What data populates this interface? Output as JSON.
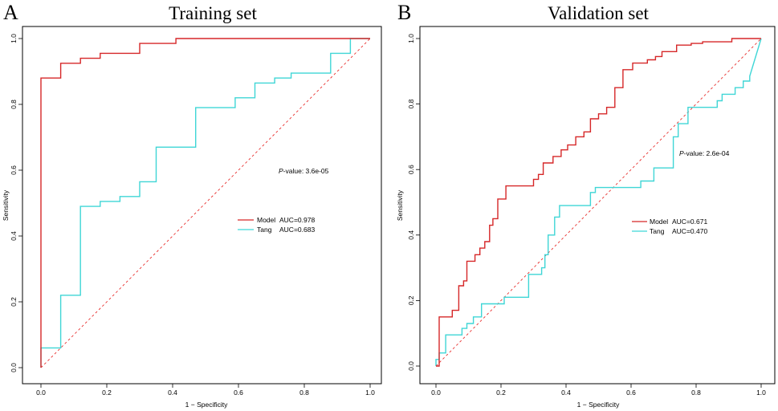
{
  "chart_data": [
    {
      "type": "line",
      "panel_label": "A",
      "title": "Training set",
      "xlabel": "1 − Specificity",
      "ylabel": "Sensitivity",
      "xlim": [
        0,
        1
      ],
      "ylim": [
        0,
        1
      ],
      "x_ticks": [
        "0.0",
        "0.2",
        "0.4",
        "0.6",
        "0.8",
        "1.0"
      ],
      "y_ticks": [
        "0.0",
        "0.2",
        "0.4",
        "0.6",
        "0.8",
        "1.0"
      ],
      "annotation": {
        "italic": "P",
        "text": "-value: 3.6e-05"
      },
      "diagonal": {
        "x": [
          0,
          1
        ],
        "y": [
          0,
          1
        ],
        "color": "#e8312f"
      },
      "legend": {
        "position": "center-right",
        "entries": [
          {
            "name": "Model",
            "auc": "AUC=0.978",
            "color": "#d62728"
          },
          {
            "name": "Tang",
            "auc": "AUC=0.683",
            "color": "#3fd6d6"
          }
        ]
      },
      "series": [
        {
          "name": "Model",
          "color": "#d62728",
          "x": [
            0,
            0,
            0.06,
            0.06,
            0.06,
            0.12,
            0.12,
            0.18,
            0.18,
            0.3,
            0.3,
            0.41,
            0.41,
            1.0
          ],
          "y": [
            0,
            0.88,
            0.88,
            0.92,
            0.925,
            0.925,
            0.94,
            0.94,
            0.955,
            0.955,
            0.985,
            0.985,
            1.0,
            1.0
          ]
        },
        {
          "name": "Tang",
          "color": "#3fd6d6",
          "x": [
            0,
            0,
            0.06,
            0.06,
            0.12,
            0.12,
            0.18,
            0.18,
            0.24,
            0.24,
            0.3,
            0.3,
            0.35,
            0.35,
            0.47,
            0.47,
            0.59,
            0.59,
            0.65,
            0.65,
            0.71,
            0.71,
            0.76,
            0.76,
            0.88,
            0.88,
            0.94,
            0.94,
            1.0
          ],
          "y": [
            0,
            0.06,
            0.06,
            0.22,
            0.22,
            0.49,
            0.49,
            0.505,
            0.505,
            0.52,
            0.52,
            0.565,
            0.565,
            0.67,
            0.67,
            0.79,
            0.79,
            0.82,
            0.82,
            0.865,
            0.865,
            0.88,
            0.88,
            0.895,
            0.895,
            0.955,
            0.955,
            1.0,
            1.0
          ]
        }
      ]
    },
    {
      "type": "line",
      "panel_label": "B",
      "title": "Validation set",
      "xlabel": "1 − Specificity",
      "ylabel": "Sensitivity",
      "xlim": [
        0,
        1
      ],
      "ylim": [
        0,
        1
      ],
      "x_ticks": [
        "0.0",
        "0.2",
        "0.4",
        "0.6",
        "0.8",
        "1.0"
      ],
      "y_ticks": [
        "0.0",
        "0.2",
        "0.4",
        "0.6",
        "0.8",
        "1.0"
      ],
      "annotation": {
        "italic": "P",
        "text": "-value: 2.6e-04"
      },
      "diagonal": {
        "x": [
          0,
          1
        ],
        "y": [
          0,
          1
        ],
        "color": "#e8312f"
      },
      "legend": {
        "position": "center-right",
        "entries": [
          {
            "name": "Model",
            "auc": "AUC=0.671",
            "color": "#d62728"
          },
          {
            "name": "Tang",
            "auc": "AUC=0.470",
            "color": "#3fd6d6"
          }
        ]
      },
      "series": [
        {
          "name": "Model",
          "color": "#d62728",
          "x": [
            0,
            0.01,
            0.01,
            0.05,
            0.05,
            0.07,
            0.07,
            0.085,
            0.085,
            0.095,
            0.095,
            0.12,
            0.12,
            0.135,
            0.135,
            0.15,
            0.15,
            0.165,
            0.165,
            0.175,
            0.175,
            0.19,
            0.19,
            0.215,
            0.215,
            0.3,
            0.3,
            0.315,
            0.315,
            0.33,
            0.33,
            0.36,
            0.36,
            0.385,
            0.385,
            0.405,
            0.405,
            0.43,
            0.43,
            0.455,
            0.455,
            0.475,
            0.475,
            0.5,
            0.5,
            0.525,
            0.525,
            0.55,
            0.55,
            0.575,
            0.575,
            0.605,
            0.605,
            0.65,
            0.65,
            0.675,
            0.675,
            0.695,
            0.695,
            0.74,
            0.74,
            0.785,
            0.785,
            0.82,
            0.82,
            0.91,
            0.91,
            0.945,
            0.945,
            0.96,
            0.96,
            0.98,
            0.98,
            1.0
          ],
          "y": [
            0,
            0.0,
            0.15,
            0.15,
            0.17,
            0.17,
            0.245,
            0.245,
            0.26,
            0.26,
            0.32,
            0.32,
            0.34,
            0.34,
            0.36,
            0.36,
            0.38,
            0.38,
            0.43,
            0.43,
            0.45,
            0.45,
            0.51,
            0.51,
            0.55,
            0.55,
            0.57,
            0.57,
            0.585,
            0.585,
            0.62,
            0.62,
            0.64,
            0.64,
            0.66,
            0.66,
            0.675,
            0.675,
            0.7,
            0.7,
            0.715,
            0.715,
            0.755,
            0.755,
            0.77,
            0.77,
            0.79,
            0.79,
            0.85,
            0.85,
            0.905,
            0.905,
            0.925,
            0.925,
            0.935,
            0.935,
            0.945,
            0.945,
            0.96,
            0.96,
            0.98,
            0.98,
            0.985,
            0.985,
            0.99,
            0.99,
            1.0,
            1.0,
            1.0,
            1.0,
            1.0,
            1.0,
            1.0,
            1.0
          ]
        },
        {
          "name": "Tang",
          "color": "#3fd6d6",
          "x": [
            0,
            0.0,
            0.01,
            0.01,
            0.03,
            0.03,
            0.08,
            0.08,
            0.095,
            0.095,
            0.115,
            0.115,
            0.14,
            0.14,
            0.21,
            0.21,
            0.285,
            0.285,
            0.325,
            0.325,
            0.335,
            0.335,
            0.345,
            0.345,
            0.365,
            0.365,
            0.38,
            0.38,
            0.475,
            0.475,
            0.49,
            0.49,
            0.63,
            0.63,
            0.67,
            0.67,
            0.73,
            0.73,
            0.745,
            0.745,
            0.775,
            0.775,
            0.865,
            0.865,
            0.88,
            0.88,
            0.92,
            0.92,
            0.945,
            0.945,
            0.965,
            0.965,
            1.0
          ],
          "y": [
            0,
            0.02,
            0.02,
            0.04,
            0.04,
            0.095,
            0.095,
            0.115,
            0.115,
            0.13,
            0.13,
            0.15,
            0.15,
            0.19,
            0.19,
            0.21,
            0.21,
            0.28,
            0.28,
            0.3,
            0.3,
            0.34,
            0.34,
            0.4,
            0.4,
            0.455,
            0.455,
            0.49,
            0.49,
            0.53,
            0.53,
            0.545,
            0.545,
            0.565,
            0.565,
            0.605,
            0.605,
            0.7,
            0.7,
            0.74,
            0.74,
            0.79,
            0.79,
            0.81,
            0.81,
            0.83,
            0.83,
            0.85,
            0.85,
            0.87,
            0.87,
            0.885,
            1.0
          ]
        }
      ]
    }
  ]
}
